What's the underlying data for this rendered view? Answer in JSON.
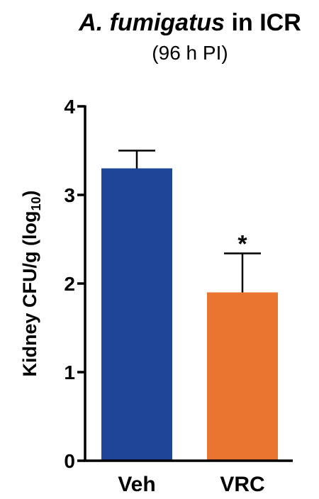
{
  "chart_data": {
    "type": "bar",
    "title_italic": "A. fumigatus",
    "title_rest": " in ICR",
    "subtitle": "(96 h PI)",
    "ylabel_main": "Kidney CFU/g (log",
    "ylabel_sub": "10",
    "ylabel_end": ")",
    "ylim": [
      0,
      4
    ],
    "yticks": [
      "0",
      "1",
      "2",
      "3",
      "4"
    ],
    "categories": [
      "Veh",
      "VRC"
    ],
    "values": [
      3.3,
      1.9
    ],
    "errors": [
      0.2,
      0.44
    ],
    "colors": [
      "#1f4696",
      "#ea7530"
    ],
    "significance": [
      "",
      "*"
    ],
    "grid": false
  }
}
